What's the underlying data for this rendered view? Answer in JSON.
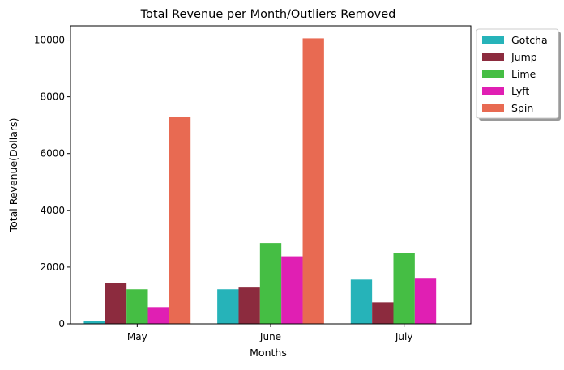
{
  "chart_data": {
    "type": "bar",
    "title": "Total Revenue per Month/Outliers Removed",
    "xlabel": "Months",
    "ylabel": "Total Revenue(Dollars)",
    "categories": [
      "May",
      "June",
      "July"
    ],
    "ylim": [
      0,
      10500
    ],
    "yticks": [
      0,
      2000,
      4000,
      6000,
      8000,
      10000
    ],
    "legend_position": "outside-top-right",
    "series": [
      {
        "name": "Gotcha",
        "color": "#26b3b9",
        "values": [
          100,
          1220,
          1560
        ]
      },
      {
        "name": "Jump",
        "color": "#8c2b3e",
        "values": [
          1450,
          1280,
          760
        ]
      },
      {
        "name": "Lime",
        "color": "#45be44",
        "values": [
          1220,
          2850,
          2510
        ]
      },
      {
        "name": "Lyft",
        "color": "#e01fb3",
        "values": [
          590,
          2380,
          1620
        ]
      },
      {
        "name": "Spin",
        "color": "#e86a52",
        "values": [
          7300,
          10060,
          0
        ]
      }
    ]
  }
}
